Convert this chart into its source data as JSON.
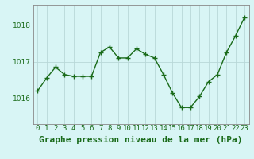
{
  "x": [
    0,
    1,
    2,
    3,
    4,
    5,
    6,
    7,
    8,
    9,
    10,
    11,
    12,
    13,
    14,
    15,
    16,
    17,
    18,
    19,
    20,
    21,
    22,
    23
  ],
  "y": [
    1016.2,
    1016.55,
    1016.85,
    1016.65,
    1016.6,
    1016.6,
    1016.6,
    1017.25,
    1017.4,
    1017.1,
    1017.1,
    1017.35,
    1017.2,
    1017.1,
    1016.65,
    1016.15,
    1015.75,
    1015.75,
    1016.05,
    1016.45,
    1016.65,
    1017.25,
    1017.7,
    1018.2
  ],
  "line_color": "#1a6b1a",
  "marker": "+",
  "marker_size": 4,
  "marker_color": "#1a6b1a",
  "bg_color": "#d8f5f5",
  "grid_color": "#b8d8d8",
  "title": "Graphe pression niveau de la mer (hPa)",
  "title_fontsize": 8,
  "title_color": "#1a6b1a",
  "xlabel_labels": [
    "0",
    "1",
    "2",
    "3",
    "4",
    "5",
    "6",
    "7",
    "8",
    "9",
    "10",
    "11",
    "12",
    "13",
    "14",
    "15",
    "16",
    "17",
    "18",
    "19",
    "20",
    "21",
    "22",
    "23"
  ],
  "yticks": [
    1016,
    1017,
    1018
  ],
  "ylim": [
    1015.3,
    1018.55
  ],
  "xlim": [
    -0.5,
    23.5
  ],
  "tick_color": "#1a6b1a",
  "tick_fontsize": 6.5,
  "line_width": 1.0,
  "spine_color": "#888888"
}
